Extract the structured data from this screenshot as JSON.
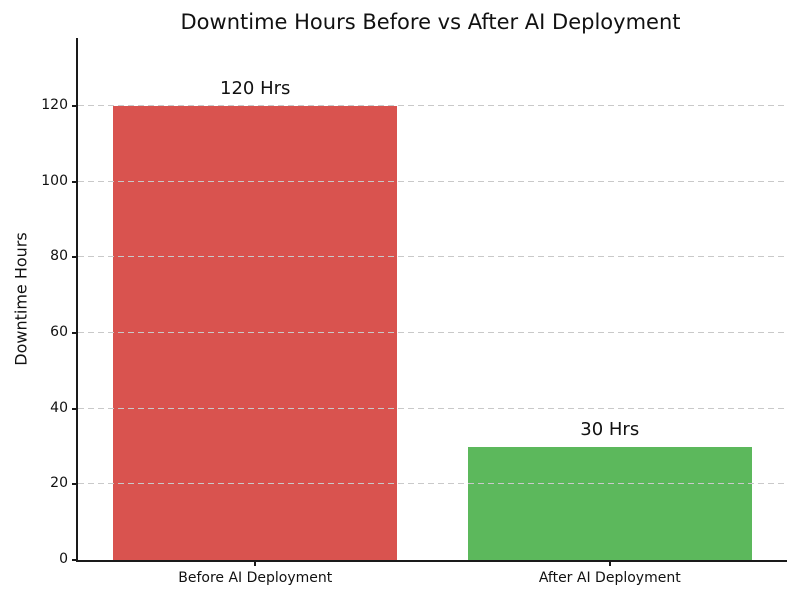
{
  "chart_data": {
    "type": "bar",
    "title": "Downtime Hours Before vs After AI Deployment",
    "xlabel": "",
    "ylabel": "Downtime Hours",
    "categories": [
      "Before AI Deployment",
      "After AI Deployment"
    ],
    "values": [
      120,
      30
    ],
    "bar_value_labels": [
      "120 Hrs",
      "30 Hrs"
    ],
    "bar_colors": [
      "#d9534f",
      "#5cb85c"
    ],
    "bar_width_fraction": 0.8,
    "ylim": [
      0,
      138
    ],
    "yticks": [
      0,
      20,
      40,
      60,
      80,
      100,
      120
    ],
    "grid": "horizontal-dashed",
    "grid_color": "#c9c9c9",
    "legend_position": "none",
    "background_color": "#ffffff",
    "text_color": "#111111"
  }
}
